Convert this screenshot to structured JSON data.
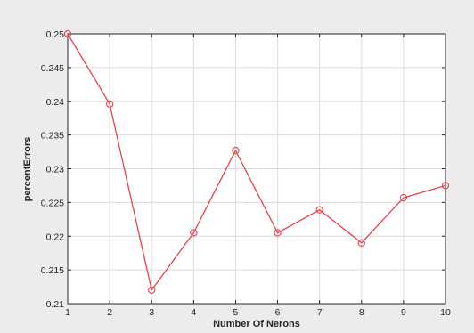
{
  "chart_data": {
    "type": "line",
    "title": "",
    "xlabel": "Number Of Nerons",
    "ylabel": "percentErrors",
    "xlim": [
      1,
      10
    ],
    "ylim": [
      0.21,
      0.25
    ],
    "x_ticks": [
      "1",
      "2",
      "3",
      "4",
      "5",
      "6",
      "7",
      "8",
      "9",
      "10"
    ],
    "y_ticks": [
      "0.21",
      "0.215",
      "0.22",
      "0.225",
      "0.23",
      "0.235",
      "0.24",
      "0.245",
      "0.25"
    ],
    "grid": true,
    "legend": "none",
    "series": [
      {
        "color": "#e8424a",
        "marker": "circle",
        "x": [
          1,
          2,
          3,
          4,
          5,
          6,
          7,
          8,
          9,
          10
        ],
        "y": [
          0.25,
          0.2396,
          0.212,
          0.2205,
          0.2327,
          0.2205,
          0.2239,
          0.219,
          0.2257,
          0.2275
        ]
      }
    ]
  }
}
